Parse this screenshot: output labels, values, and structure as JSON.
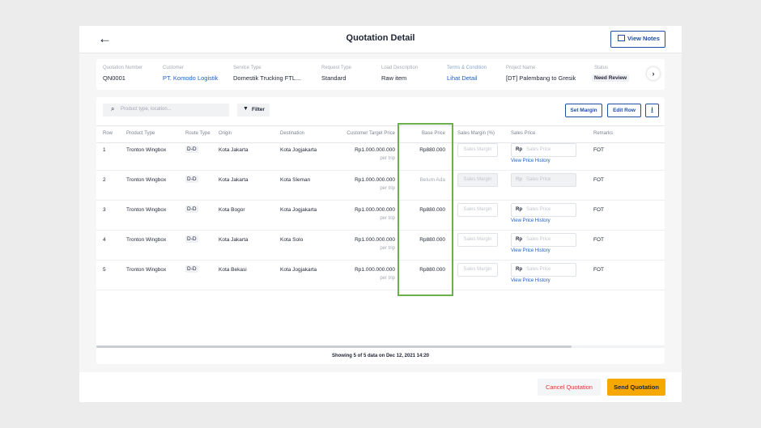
{
  "header": {
    "title": "Quotation Detail",
    "button": "View Notes"
  },
  "info": {
    "fields": [
      {
        "label": "Quotation Number",
        "value": "QN0001",
        "link": false
      },
      {
        "label": "Customer",
        "value": "PT. Komodo Logistik",
        "link": true
      },
      {
        "label": "Service Type",
        "value": "Domestik Trucking FTL...",
        "link": false
      },
      {
        "label": "Request Type",
        "value": "Standard",
        "link": false
      },
      {
        "label": "Load Description",
        "value": "Raw item",
        "link": false
      },
      {
        "label": "Terms & Condition",
        "value": "Lihat Detail",
        "link": true
      },
      {
        "label": "Project Name",
        "value": "[DT] Palembang to Gresik",
        "link": false
      },
      {
        "label": "Status",
        "value": "Need Review",
        "link": false
      }
    ]
  },
  "toolbar": {
    "search_placeholder": "Product type, location...",
    "filter": "Filter",
    "set_margin": "Set Margin",
    "edit_row": "Edit Row"
  },
  "table": {
    "columns": [
      "Row",
      "Product Type",
      "Route Type",
      "Origin",
      "Destination",
      "Customer Target Price",
      "Base Price",
      "Sales Margin (%)",
      "Sales Price",
      "Remarks"
    ],
    "margin_placeholder": "Sales Margin",
    "price_prefix": "Rp",
    "price_placeholder": "Sales Price",
    "history_link": "View Price History",
    "target_unit": "per trip",
    "rows": [
      {
        "row": "1",
        "product_type": "Tronton Wingbox",
        "route_type": "D-D",
        "origin": "Kota Jakarta",
        "destination": "Kota Jogjakarta",
        "target_price": "Rp1.000.000.000",
        "base_price": "Rp880.000",
        "remarks": "FOT",
        "disabled": false
      },
      {
        "row": "2",
        "product_type": "Tronton Wingbox",
        "route_type": "D-D",
        "origin": "Kota Jakarta",
        "destination": "Kota Sleman",
        "target_price": "Rp1.000.000.000",
        "base_price": "Belum Ada",
        "remarks": "FOT",
        "disabled": true
      },
      {
        "row": "3",
        "product_type": "Tronton Wingbox",
        "route_type": "D-D",
        "origin": "Kota Bogor",
        "destination": "Kota Jogjakarta",
        "target_price": "Rp1.000.000.000",
        "base_price": "Rp880.000",
        "remarks": "FOT",
        "disabled": false
      },
      {
        "row": "4",
        "product_type": "Tronton Wingbox",
        "route_type": "D-D",
        "origin": "Kota Jakarta",
        "destination": "Kota Solo",
        "target_price": "Rp1.000.000.000",
        "base_price": "Rp880.000",
        "remarks": "FOT",
        "disabled": false
      },
      {
        "row": "5",
        "product_type": "Tronton Wingbox",
        "route_type": "D-D",
        "origin": "Kota Bekasi",
        "destination": "Kota Jogjakarta",
        "target_price": "Rp1.000.000.000",
        "base_price": "Rp880.000",
        "remarks": "FOT",
        "disabled": false
      }
    ]
  },
  "footer": {
    "status": "Showing 5 of 5 data on Dec 12, 2021 14:20"
  },
  "actions": {
    "cancel": "Cancel Quotation",
    "send": "Send Quotation"
  }
}
